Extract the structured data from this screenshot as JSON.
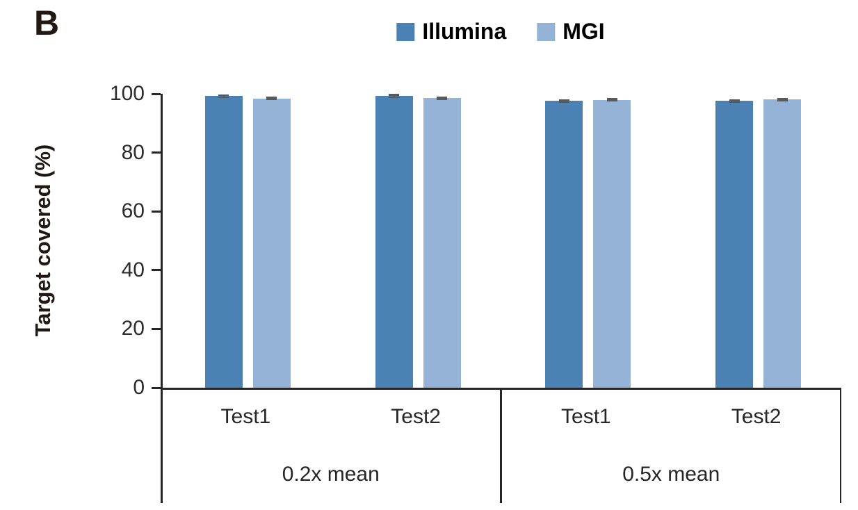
{
  "panel_label": "B",
  "legend": {
    "items": [
      {
        "label": "Illumina",
        "color": "#4C81B3"
      },
      {
        "label": "MGI",
        "color": "#95B3D7"
      }
    ]
  },
  "y_axis": {
    "title": "Target covered (%)",
    "tick_labels": [
      "100",
      "80",
      "60",
      "40",
      "20",
      "0"
    ]
  },
  "colors": {
    "illumina": "#4C81B3",
    "mgi": "#95B3D7",
    "error_bar": "#595959",
    "axis_line": "#262626",
    "text": "#262626"
  },
  "chart_data": {
    "type": "bar",
    "title": "",
    "xlabel": "",
    "ylabel": "Target covered (%)",
    "ylim": [
      0,
      100
    ],
    "y_ticks": [
      0,
      20,
      40,
      60,
      80,
      100
    ],
    "grid": false,
    "legend_position": "top-center",
    "group_labels": [
      "0.2x mean",
      "0.5x mean"
    ],
    "categories": [
      "Test1",
      "Test2",
      "Test1",
      "Test2"
    ],
    "series": [
      {
        "name": "Illumina",
        "color": "#4C81B3",
        "values": [
          99.2,
          99.2,
          97.6,
          97.6
        ],
        "errors": [
          0.35,
          0.4,
          0.3,
          0.3
        ]
      },
      {
        "name": "MGI",
        "color": "#95B3D7",
        "values": [
          98.4,
          98.5,
          97.9,
          98.0
        ],
        "errors": [
          0.3,
          0.3,
          0.3,
          0.3
        ]
      }
    ]
  }
}
